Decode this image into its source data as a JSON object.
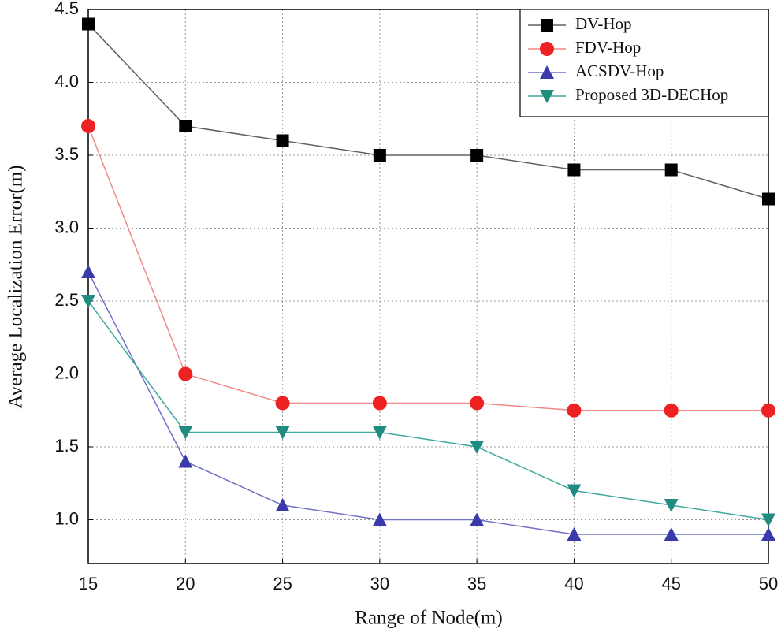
{
  "chart_data": {
    "type": "line",
    "x_label": "Range of Node(m)",
    "y_label": "Average Localization Error(m)",
    "x": [
      15,
      20,
      25,
      30,
      35,
      40,
      45,
      50
    ],
    "xlim": [
      15,
      50
    ],
    "xticks": [
      15,
      20,
      25,
      30,
      35,
      40,
      45,
      50
    ],
    "ylim": [
      0.7,
      4.5
    ],
    "yticks": [
      {
        "value": 1,
        "label": "1.0"
      },
      {
        "value": 1.5,
        "label": "1.5"
      },
      {
        "value": 2,
        "label": "2.0"
      },
      {
        "value": 2.5,
        "label": "2.5"
      },
      {
        "value": 3,
        "label": "3.0"
      },
      {
        "value": 3.5,
        "label": "3.5"
      },
      {
        "value": 4,
        "label": "4.0"
      },
      {
        "value": 4.5,
        "label": "4.5"
      }
    ],
    "grid": true,
    "legend": "top-right",
    "series": [
      {
        "name": "DV-Hop",
        "color": "#000000",
        "line_color": "#606060",
        "marker": "square",
        "values": [
          4.4,
          3.7,
          3.6,
          3.5,
          3.5,
          3.4,
          3.4,
          3.2
        ]
      },
      {
        "name": "FDV-Hop",
        "color": "#ee2222",
        "line_color": "#f08888",
        "marker": "circle",
        "values": [
          3.7,
          2.0,
          1.8,
          1.8,
          1.8,
          1.75,
          1.75,
          1.75
        ]
      },
      {
        "name": "ACSDV-Hop",
        "color": "#3a3aaa",
        "line_color": "#7070c8",
        "marker": "triangle-up",
        "values": [
          2.7,
          1.4,
          1.1,
          1.0,
          1.0,
          0.9,
          0.9,
          0.9
        ]
      },
      {
        "name": "Proposed 3D-DECHop",
        "color": "#208c80",
        "line_color": "#40a89c",
        "marker": "triangle-down",
        "values": [
          2.5,
          1.6,
          1.6,
          1.6,
          1.5,
          1.2,
          1.1,
          1.0
        ]
      }
    ]
  }
}
